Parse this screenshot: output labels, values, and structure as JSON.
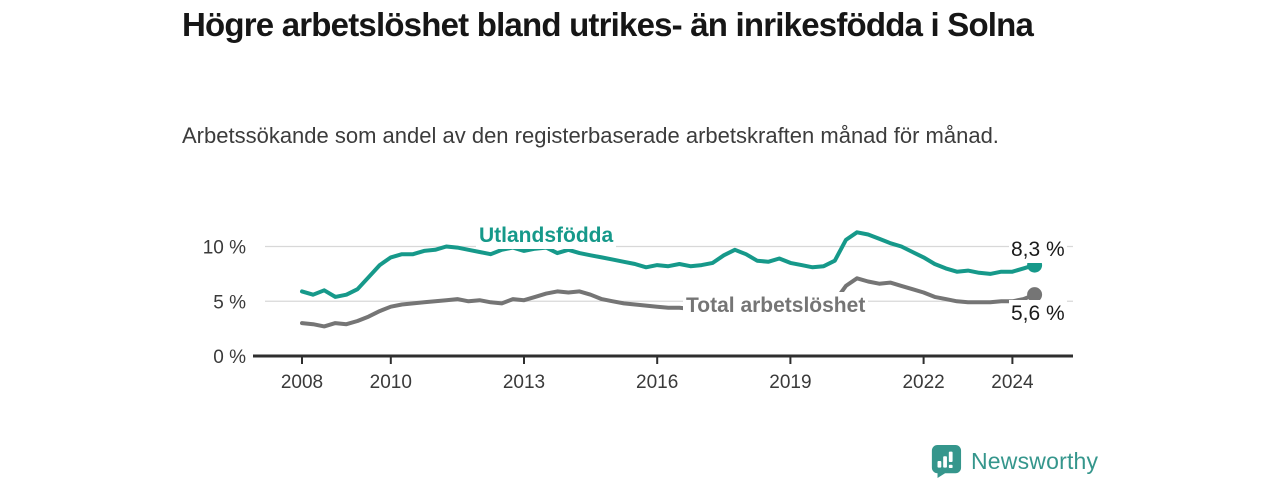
{
  "title": "Högre arbetslöshet bland utrikes- än inrikesfödda i Solna",
  "subtitle": "Arbetssökande som andel av den registerbaserade arbetskraften månad för månad.",
  "colors": {
    "foreign_line": "#16998a",
    "total_line": "#757575",
    "annotation_text": "#1a1a1a",
    "axis": "#2e2e2e",
    "tick_text": "#3a3a3a",
    "grid": "#d8d8d8",
    "logo": "#35968c"
  },
  "chart_data": {
    "type": "line",
    "title": "Högre arbetslöshet bland utrikes- än inrikesfödda i Solna",
    "subtitle": "Arbetssökande som andel av den registerbaserade arbetskraften månad för månad.",
    "x_unit": "decimal_year (monthly series, shown quarterly)",
    "xlim": [
      2007.9,
      2025.4
    ],
    "ylim": [
      0,
      12
    ],
    "grid": "horizontal",
    "legend": "inline-labels",
    "yticks": [
      {
        "value": 0,
        "label": "0 %"
      },
      {
        "value": 5,
        "label": "5 %"
      },
      {
        "value": 10,
        "label": "10 %"
      }
    ],
    "xticks": [
      {
        "value": 2008,
        "label": "2008"
      },
      {
        "value": 2010,
        "label": "2010"
      },
      {
        "value": 2013,
        "label": "2013"
      },
      {
        "value": 2016,
        "label": "2016"
      },
      {
        "value": 2019,
        "label": "2019"
      },
      {
        "value": 2022,
        "label": "2022"
      },
      {
        "value": 2024,
        "label": "2024"
      }
    ],
    "x": [
      2008,
      2008.25,
      2008.5,
      2008.75,
      2009,
      2009.25,
      2009.5,
      2009.75,
      2010,
      2010.25,
      2010.5,
      2010.75,
      2011,
      2011.25,
      2011.5,
      2011.75,
      2012,
      2012.25,
      2012.5,
      2012.75,
      2013,
      2013.25,
      2013.5,
      2013.75,
      2014,
      2014.25,
      2014.5,
      2014.75,
      2015,
      2015.25,
      2015.5,
      2015.75,
      2016,
      2016.25,
      2016.5,
      2016.75,
      2017,
      2017.25,
      2017.5,
      2017.75,
      2018,
      2018.25,
      2018.5,
      2018.75,
      2019,
      2019.25,
      2019.5,
      2019.75,
      2020,
      2020.25,
      2020.5,
      2020.75,
      2021,
      2021.25,
      2021.5,
      2021.75,
      2022,
      2022.25,
      2022.5,
      2022.75,
      2023,
      2023.25,
      2023.5,
      2023.75,
      2024,
      2024.25,
      2024.5
    ],
    "series": [
      {
        "name": "Utlandsfödda",
        "color": "#16998a",
        "end_value": 8.3,
        "end_label": "8,3 %",
        "values": [
          5.9,
          5.6,
          6.0,
          5.4,
          5.6,
          6.1,
          7.2,
          8.3,
          9.0,
          9.3,
          9.3,
          9.6,
          9.7,
          10.0,
          9.9,
          9.7,
          9.5,
          9.3,
          9.7,
          9.9,
          9.6,
          9.8,
          9.9,
          9.4,
          9.7,
          9.4,
          9.2,
          9.0,
          8.8,
          8.6,
          8.4,
          8.1,
          8.3,
          8.2,
          8.4,
          8.2,
          8.3,
          8.5,
          9.2,
          9.7,
          9.3,
          8.7,
          8.6,
          8.9,
          8.5,
          8.3,
          8.1,
          8.2,
          8.7,
          10.6,
          11.3,
          11.1,
          10.7,
          10.3,
          10.0,
          9.5,
          9.0,
          8.4,
          8.0,
          7.7,
          7.8,
          7.6,
          7.5,
          7.7,
          7.7,
          8.0,
          8.3
        ]
      },
      {
        "name": "Total arbetslöshet",
        "color": "#757575",
        "end_value": 5.6,
        "end_label": "5,6 %",
        "values": [
          3.0,
          2.9,
          2.7,
          3.0,
          2.9,
          3.2,
          3.6,
          4.1,
          4.5,
          4.7,
          4.8,
          4.9,
          5.0,
          5.1,
          5.2,
          5.0,
          5.1,
          4.9,
          4.8,
          5.2,
          5.1,
          5.4,
          5.7,
          5.9,
          5.8,
          5.9,
          5.6,
          5.2,
          5.0,
          4.8,
          4.7,
          4.6,
          4.5,
          4.4,
          4.4,
          4.3,
          4.3,
          4.3,
          4.2,
          4.3,
          4.3,
          4.2,
          4.3,
          4.3,
          4.3,
          4.4,
          4.4,
          4.6,
          5.0,
          6.4,
          7.1,
          6.8,
          6.6,
          6.7,
          6.4,
          6.1,
          5.8,
          5.4,
          5.2,
          5.0,
          4.9,
          4.9,
          4.9,
          5.0,
          5.0,
          5.2,
          5.6
        ]
      }
    ]
  },
  "logo": {
    "text": "Newsworthy"
  }
}
